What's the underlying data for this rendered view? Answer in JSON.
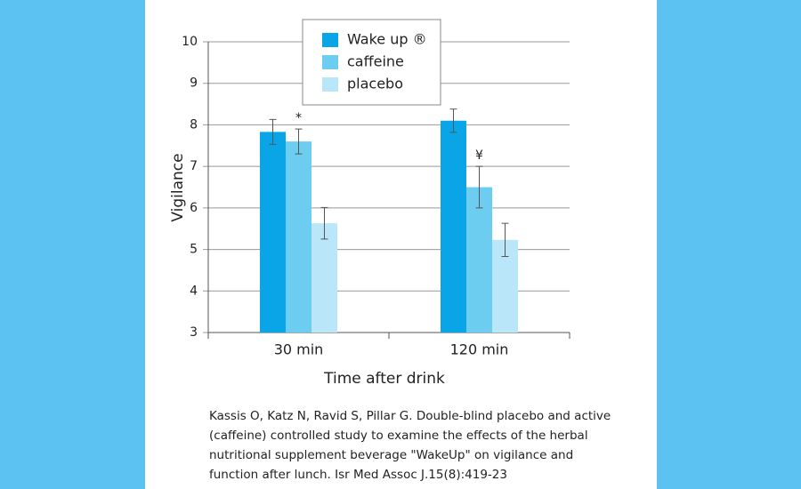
{
  "chart_data": {
    "type": "bar",
    "xlabel": "Time after drink",
    "ylabel": "Vigilance",
    "categories": [
      "30 min",
      "120 min"
    ],
    "series": [
      {
        "name": "Wake up ®",
        "color": "#0aa5e6",
        "values": [
          7.83,
          8.1
        ],
        "errors": [
          0.3,
          0.28
        ]
      },
      {
        "name": "caffeine",
        "color": "#6dcdf0",
        "values": [
          7.6,
          6.5
        ],
        "errors": [
          0.3,
          0.5
        ]
      },
      {
        "name": "placebo",
        "color": "#b9e6f8",
        "values": [
          5.63,
          5.23
        ],
        "errors": [
          0.38,
          0.4
        ]
      }
    ],
    "ylim": [
      3,
      10
    ],
    "yticks": [
      3,
      4,
      5,
      6,
      7,
      8,
      9,
      10
    ],
    "grid": true,
    "legend": "top",
    "annotations": [
      "*",
      "¥"
    ],
    "caption": [
      "Kassis O, Katz N, Ravid S, Pillar G.  Double-blind placebo and active",
      "(caffeine) controlled study to examine the effects of the herbal",
      "nutritional supplement beverage \"WakeUp\" on vigilance and",
      "function after lunch.  Isr Med Assoc J.15(8):419-23"
    ]
  }
}
